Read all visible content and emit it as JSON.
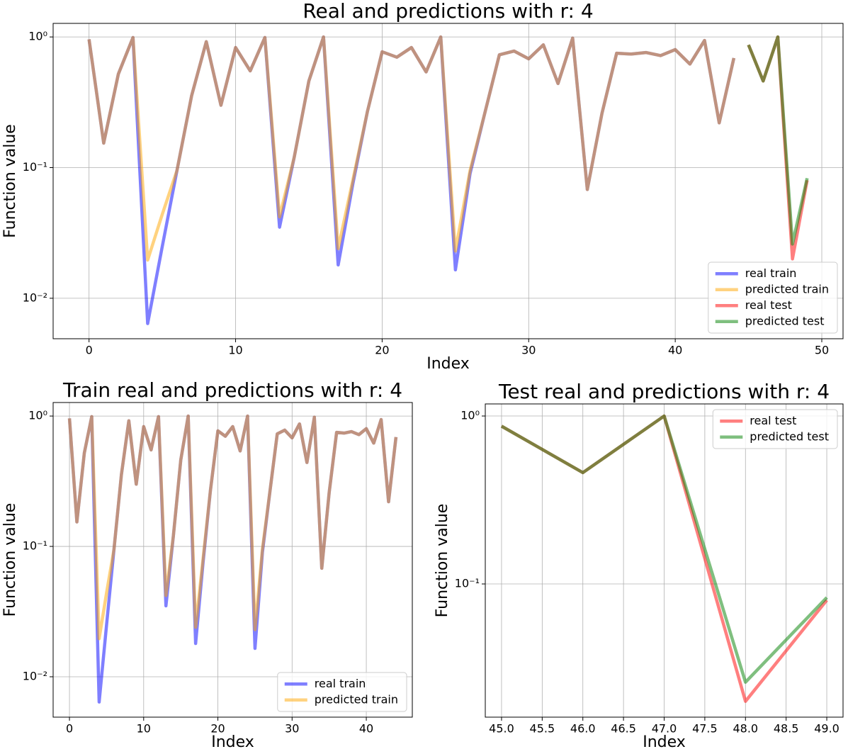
{
  "chart_data": [
    {
      "type": "line",
      "title": "Real and predictions with r: 4",
      "x_label": "Index",
      "y_label": "Function value",
      "yscale": "log",
      "grid": true,
      "legend": "lower right",
      "xlim": [
        -2.45,
        51.45
      ],
      "xticks": [
        0,
        10,
        20,
        30,
        40,
        50
      ],
      "ylim": [
        0.0049,
        1.27
      ],
      "yticks": [
        {
          "value": 0.01,
          "label": "10⁻²"
        },
        {
          "value": 0.1,
          "label": "10⁻¹"
        },
        {
          "value": 1,
          "label": "10⁰"
        }
      ],
      "series": [
        {
          "name": "real train",
          "color": "#0000ff",
          "x": [
            0,
            1,
            2,
            3,
            4,
            5,
            6,
            7,
            8,
            9,
            10,
            11,
            12,
            13,
            14,
            15,
            16,
            17,
            18,
            19,
            20,
            21,
            22,
            23,
            24,
            25,
            26,
            27,
            28,
            29,
            30,
            31,
            32,
            33,
            34,
            35,
            36,
            37,
            38,
            39,
            40,
            41,
            42,
            43,
            44
          ],
          "values": [
            0.96,
            0.154,
            0.52,
            0.99,
            0.0064,
            0.025,
            0.095,
            0.355,
            0.92,
            0.3,
            0.83,
            0.55,
            0.99,
            0.035,
            0.12,
            0.46,
            1.0,
            0.018,
            0.075,
            0.27,
            0.77,
            0.7,
            0.83,
            0.54,
            1.0,
            0.0165,
            0.09,
            0.26,
            0.73,
            0.78,
            0.68,
            0.87,
            0.44,
            0.98,
            0.068,
            0.26,
            0.75,
            0.74,
            0.76,
            0.72,
            0.8,
            0.62,
            0.94,
            0.22,
            0.69
          ]
        },
        {
          "name": "predicted train",
          "color": "#ffa500",
          "x": [
            0,
            1,
            2,
            3,
            4,
            5,
            6,
            7,
            8,
            9,
            10,
            11,
            12,
            13,
            14,
            15,
            16,
            17,
            18,
            19,
            20,
            21,
            22,
            23,
            24,
            25,
            26,
            27,
            28,
            29,
            30,
            31,
            32,
            33,
            34,
            35,
            36,
            37,
            38,
            39,
            40,
            41,
            42,
            43,
            44
          ],
          "values": [
            0.96,
            0.154,
            0.52,
            0.99,
            0.0196,
            0.044,
            0.095,
            0.355,
            0.92,
            0.3,
            0.83,
            0.55,
            0.99,
            0.042,
            0.12,
            0.46,
            1.0,
            0.024,
            0.08,
            0.27,
            0.77,
            0.7,
            0.83,
            0.54,
            1.0,
            0.023,
            0.095,
            0.26,
            0.73,
            0.78,
            0.68,
            0.87,
            0.44,
            0.98,
            0.068,
            0.26,
            0.75,
            0.74,
            0.76,
            0.72,
            0.8,
            0.62,
            0.94,
            0.22,
            0.69
          ]
        },
        {
          "name": "real test",
          "color": "#ff0000",
          "x": [
            45,
            46,
            47,
            48,
            49
          ],
          "values": [
            0.87,
            0.46,
            1.0,
            0.02,
            0.08
          ]
        },
        {
          "name": "predicted test",
          "color": "#008000",
          "x": [
            45,
            46,
            47,
            48,
            49
          ],
          "values": [
            0.87,
            0.46,
            1.0,
            0.026,
            0.083
          ]
        }
      ]
    },
    {
      "type": "line",
      "title": "Train real and predictions with r: 4",
      "x_label": "Index",
      "y_label": "Function value",
      "yscale": "log",
      "grid": true,
      "legend": "lower right",
      "xlim": [
        -2.2,
        46.2
      ],
      "xticks": [
        0,
        10,
        20,
        30,
        40
      ],
      "ylim": [
        0.0049,
        1.27
      ],
      "yticks": [
        {
          "value": 0.01,
          "label": "10⁻²"
        },
        {
          "value": 0.1,
          "label": "10⁻¹"
        },
        {
          "value": 1,
          "label": "10⁰"
        }
      ],
      "series": [
        {
          "name": "real train",
          "color": "#0000ff",
          "x": [
            0,
            1,
            2,
            3,
            4,
            5,
            6,
            7,
            8,
            9,
            10,
            11,
            12,
            13,
            14,
            15,
            16,
            17,
            18,
            19,
            20,
            21,
            22,
            23,
            24,
            25,
            26,
            27,
            28,
            29,
            30,
            31,
            32,
            33,
            34,
            35,
            36,
            37,
            38,
            39,
            40,
            41,
            42,
            43,
            44
          ],
          "values": [
            0.96,
            0.154,
            0.52,
            0.99,
            0.0064,
            0.025,
            0.095,
            0.355,
            0.92,
            0.3,
            0.83,
            0.55,
            0.99,
            0.035,
            0.12,
            0.46,
            1.0,
            0.018,
            0.075,
            0.27,
            0.77,
            0.7,
            0.83,
            0.54,
            1.0,
            0.0165,
            0.09,
            0.26,
            0.73,
            0.78,
            0.68,
            0.87,
            0.44,
            0.98,
            0.068,
            0.26,
            0.75,
            0.74,
            0.76,
            0.72,
            0.8,
            0.62,
            0.94,
            0.22,
            0.69
          ]
        },
        {
          "name": "predicted train",
          "color": "#ffa500",
          "x": [
            0,
            1,
            2,
            3,
            4,
            5,
            6,
            7,
            8,
            9,
            10,
            11,
            12,
            13,
            14,
            15,
            16,
            17,
            18,
            19,
            20,
            21,
            22,
            23,
            24,
            25,
            26,
            27,
            28,
            29,
            30,
            31,
            32,
            33,
            34,
            35,
            36,
            37,
            38,
            39,
            40,
            41,
            42,
            43,
            44
          ],
          "values": [
            0.96,
            0.154,
            0.52,
            0.99,
            0.0196,
            0.044,
            0.095,
            0.355,
            0.92,
            0.3,
            0.83,
            0.55,
            0.99,
            0.042,
            0.12,
            0.46,
            1.0,
            0.024,
            0.08,
            0.27,
            0.77,
            0.7,
            0.83,
            0.54,
            1.0,
            0.023,
            0.095,
            0.26,
            0.73,
            0.78,
            0.68,
            0.87,
            0.44,
            0.98,
            0.068,
            0.26,
            0.75,
            0.74,
            0.76,
            0.72,
            0.8,
            0.62,
            0.94,
            0.22,
            0.69
          ]
        }
      ]
    },
    {
      "type": "line",
      "title": "Test real and predictions with r: 4",
      "x_label": "Index",
      "y_label": "Function value",
      "yscale": "log",
      "grid": true,
      "legend": "upper right",
      "xlim": [
        44.8,
        49.2
      ],
      "xticks": [
        {
          "value": 45,
          "label": "45.0"
        },
        {
          "value": 45.5,
          "label": "45.5"
        },
        {
          "value": 46,
          "label": "46.0"
        },
        {
          "value": 46.5,
          "label": "46.5"
        },
        {
          "value": 47,
          "label": "47.0"
        },
        {
          "value": 47.5,
          "label": "47.5"
        },
        {
          "value": 48,
          "label": "48.0"
        },
        {
          "value": 48.5,
          "label": "48.5"
        },
        {
          "value": 49,
          "label": "49.0"
        }
      ],
      "ylim": [
        0.0161,
        1.18
      ],
      "yticks": [
        {
          "value": 0.1,
          "label": "10⁻¹"
        },
        {
          "value": 1,
          "label": "10⁰"
        }
      ],
      "series": [
        {
          "name": "real test",
          "color": "#ff0000",
          "x": [
            45,
            46,
            47,
            48,
            49
          ],
          "values": [
            0.87,
            0.46,
            1.0,
            0.02,
            0.08
          ]
        },
        {
          "name": "predicted test",
          "color": "#008000",
          "x": [
            45,
            46,
            47,
            48,
            49
          ],
          "values": [
            0.87,
            0.46,
            1.0,
            0.026,
            0.083
          ]
        }
      ]
    }
  ]
}
